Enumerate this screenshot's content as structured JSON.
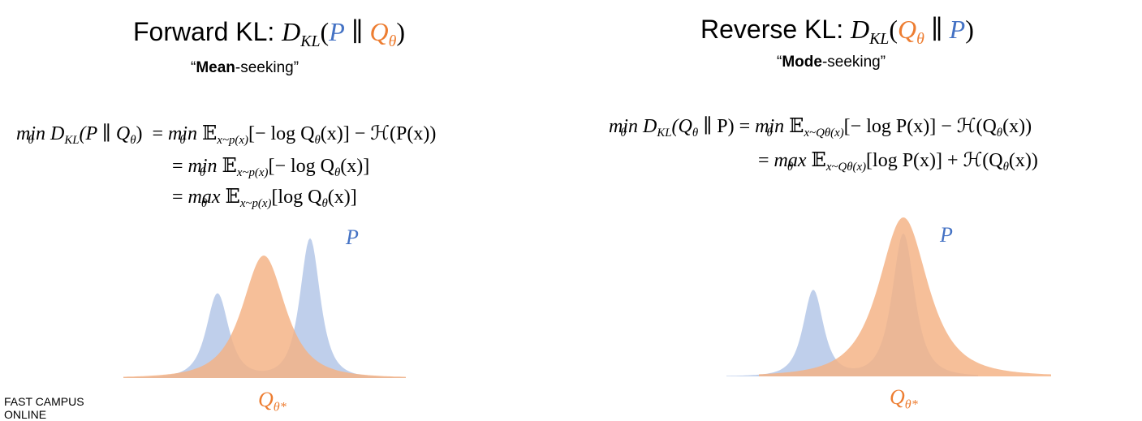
{
  "left": {
    "title": {
      "label": "Forward KL:",
      "formula": [
        "D",
        "KL",
        "(",
        "P",
        " ∥ ",
        "Q",
        "θ",
        ")"
      ]
    },
    "subtitle": {
      "open": "“",
      "bold": "Mean",
      "rest": "-seeking”"
    },
    "equations": [
      [
        "min",
        "θ",
        "D",
        "KL",
        "(P ∥ Q",
        "θ",
        ")",
        "= ",
        "min",
        "θ",
        "𝔼",
        "x~p(x)",
        "[− log Q",
        "θ",
        "(x)] − ℋ(P(x))"
      ],
      [
        "= ",
        "min",
        "θ",
        "𝔼",
        "x~p(x)",
        "[− log Q",
        "θ",
        "(x)]"
      ],
      [
        "= ",
        "max",
        "θ",
        "𝔼",
        "x~p(x)",
        "[log Q",
        "θ",
        "(x)]"
      ]
    ],
    "p_label": "P",
    "q_label": [
      "Q",
      "θ*"
    ]
  },
  "right": {
    "title": {
      "label": "Reverse KL:",
      "formula": [
        "D",
        "KL",
        "(",
        "Q",
        "θ",
        " ∥ ",
        "P",
        ")"
      ]
    },
    "subtitle": {
      "open": "“",
      "bold": "Mode",
      "rest": "-seeking”"
    },
    "equations": [
      [
        "min",
        "θ",
        "D",
        "KL",
        "(Q",
        "θ",
        " ∥ P) = ",
        "min",
        "θ",
        "𝔼",
        "x~Qθ(x)",
        "[− log P(x)] − ℋ(Q",
        "θ",
        "(x))"
      ],
      [
        "= ",
        "max",
        "θ",
        "𝔼",
        "x~Qθ(x)",
        "[log P(x)] + ℋ(Q",
        "θ",
        "(x))"
      ]
    ],
    "p_label": "P",
    "q_label": [
      "Q",
      "θ*"
    ]
  },
  "footer": [
    "FAST CAMPUS",
    "ONLINE"
  ]
}
